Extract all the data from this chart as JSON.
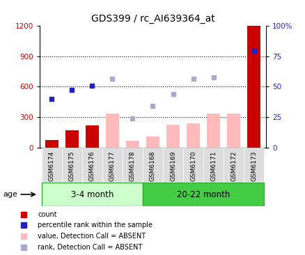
{
  "title": "GDS399 / rc_AI639364_at",
  "samples": [
    "GSM6174",
    "GSM6175",
    "GSM6176",
    "GSM6177",
    "GSM6178",
    "GSM6168",
    "GSM6169",
    "GSM6170",
    "GSM6171",
    "GSM6172",
    "GSM6173"
  ],
  "count_values": [
    80,
    170,
    220,
    null,
    60,
    null,
    null,
    null,
    null,
    null,
    1200
  ],
  "percentile_rank": [
    480,
    570,
    610,
    null,
    null,
    null,
    null,
    null,
    null,
    null,
    950
  ],
  "value_absent": [
    null,
    null,
    null,
    340,
    70,
    110,
    230,
    240,
    340,
    340,
    null
  ],
  "rank_absent": [
    null,
    null,
    null,
    680,
    290,
    410,
    530,
    680,
    690,
    null,
    null
  ],
  "ylim_left": [
    0,
    1200
  ],
  "ylim_right": [
    0,
    100
  ],
  "yticks_left": [
    0,
    300,
    600,
    900,
    1200
  ],
  "yticks_right": [
    0,
    25,
    50,
    75,
    100
  ],
  "ytick_labels_right": [
    "0",
    "25",
    "50",
    "75",
    "100%"
  ],
  "group1_label": "3-4 month",
  "group2_label": "20-22 month",
  "group1_samples": 5,
  "group2_samples": 6,
  "age_label": "age",
  "bar_color_count": "#cc0000",
  "bar_color_absent": "#ffbbbb",
  "dot_color_rank": "#2222bb",
  "dot_color_rank_absent": "#aaaacc",
  "bg_color_plot": "#ffffff",
  "group1_bg": "#ccffcc",
  "group2_bg": "#44cc44",
  "legend_items": [
    "count",
    "percentile rank within the sample",
    "value, Detection Call = ABSENT",
    "rank, Detection Call = ABSENT"
  ],
  "legend_colors": [
    "#cc0000",
    "#2222bb",
    "#ffbbbb",
    "#aaaacc"
  ]
}
